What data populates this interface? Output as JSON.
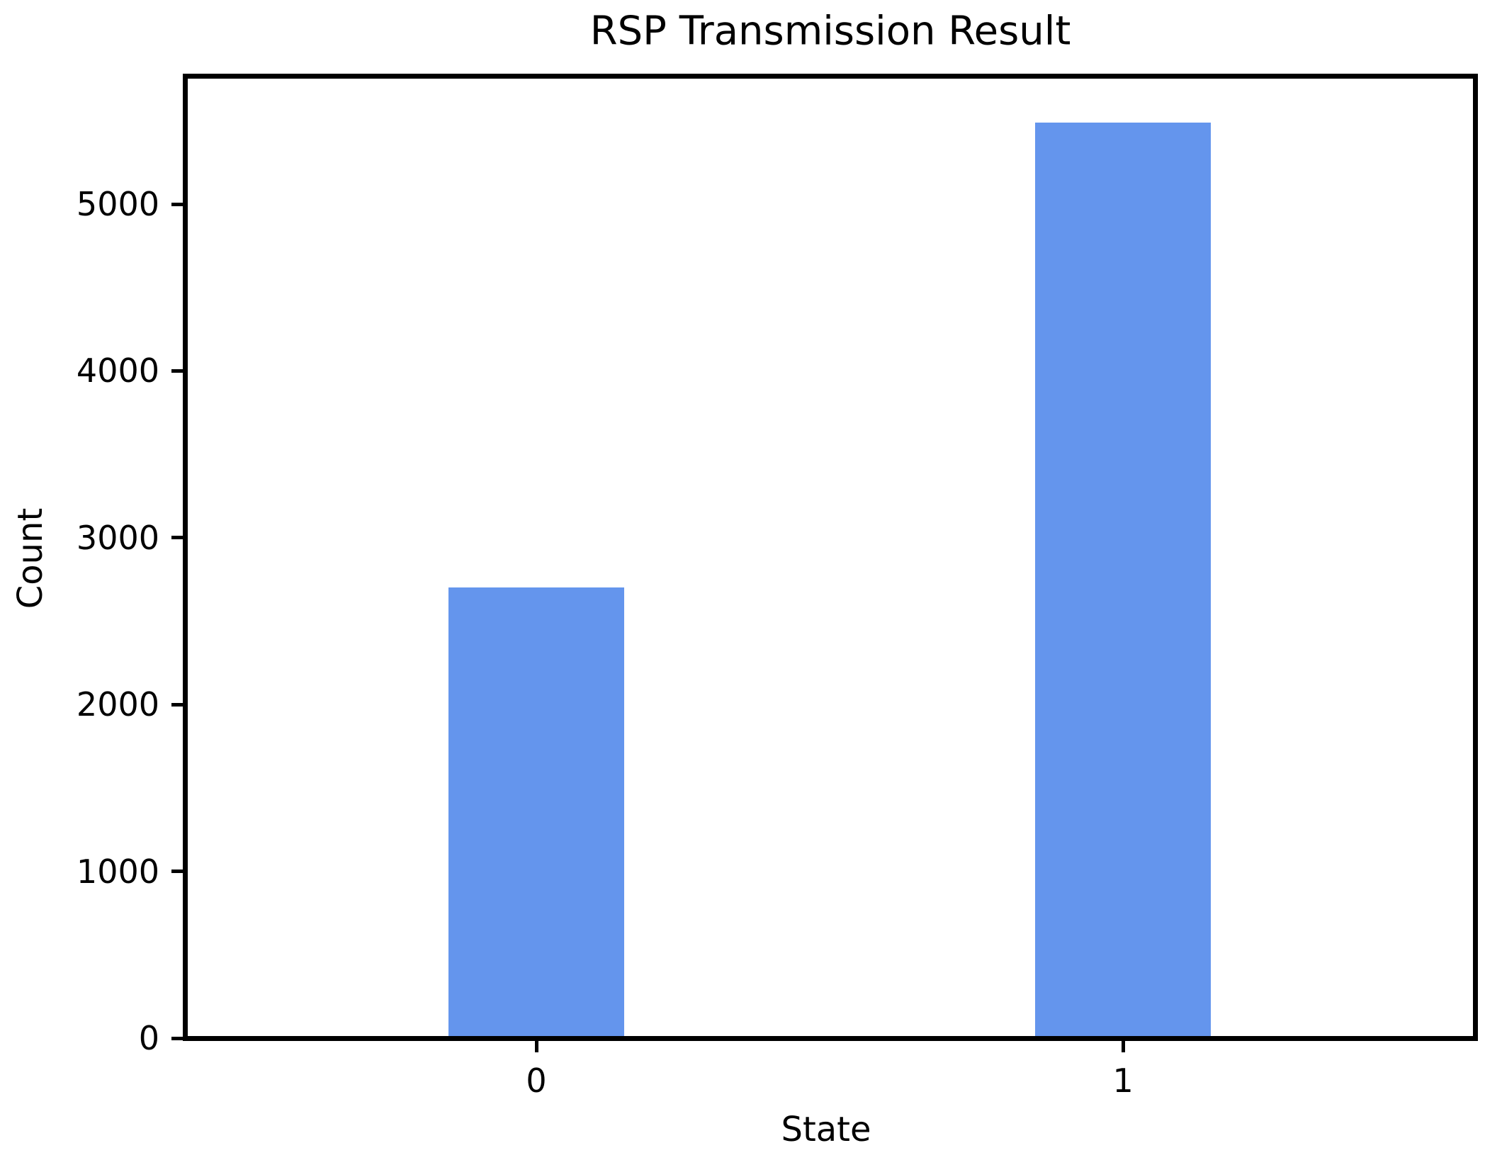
{
  "chart_data": {
    "type": "bar",
    "title": "RSP Transmission Result",
    "xlabel": "State",
    "ylabel": "Count",
    "categories": [
      "0",
      "1"
    ],
    "values": [
      2700,
      5490
    ],
    "yticks": [
      0,
      1000,
      2000,
      3000,
      4000,
      5000
    ],
    "ylim": [
      0,
      5765
    ],
    "grid": false,
    "legend_position": "none",
    "bar_color": "#6495ed",
    "axis_color": "#000000",
    "background_color": "#ffffff",
    "bar_centers_frac": [
      0.272,
      0.727
    ],
    "bar_width_frac": 0.136
  }
}
